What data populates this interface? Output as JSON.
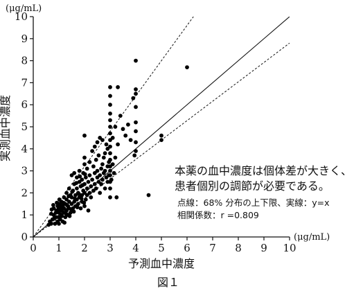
{
  "figure": {
    "caption": "図１"
  },
  "chart_data": {
    "type": "scatter",
    "xlabel": "予測血中濃度",
    "ylabel": "実測血中濃度",
    "x_unit": "(μg/mL)",
    "y_unit": "(μg/mL)",
    "xlim": [
      0,
      10
    ],
    "ylim": [
      0,
      10
    ],
    "x_ticks": [
      0,
      1,
      2,
      3,
      4,
      5,
      6,
      7,
      8,
      9,
      10
    ],
    "y_ticks": [
      0,
      1,
      2,
      3,
      4,
      5,
      6,
      7,
      8,
      9,
      10
    ],
    "grid": false,
    "annotations": {
      "line1": "本薬の血中濃度は個体差が大きく、",
      "line2": "患者個別の調節が必要である。",
      "line3": "点線：68% 分布の上下限、実線：y=x",
      "line4": "相関係数：r =0.809"
    },
    "reference_lines": [
      {
        "name": "y=x",
        "style": "solid",
        "slope": 1.0
      },
      {
        "style": "dotted",
        "slope": 1.6
      },
      {
        "style": "dotted",
        "slope": 0.88
      }
    ],
    "points": [
      [
        0.7,
        0.6
      ],
      [
        0.75,
        0.8
      ],
      [
        0.8,
        1.0
      ],
      [
        0.8,
        1.3
      ],
      [
        0.85,
        0.6
      ],
      [
        0.9,
        0.9
      ],
      [
        0.9,
        1.2
      ],
      [
        0.95,
        1.4
      ],
      [
        0.95,
        0.7
      ],
      [
        1.0,
        0.6
      ],
      [
        1.0,
        0.9
      ],
      [
        1.0,
        1.1
      ],
      [
        1.0,
        1.3
      ],
      [
        1.05,
        1.5
      ],
      [
        1.05,
        0.8
      ],
      [
        1.1,
        1.0
      ],
      [
        1.1,
        1.2
      ],
      [
        1.1,
        1.6
      ],
      [
        1.15,
        0.7
      ],
      [
        1.15,
        1.4
      ],
      [
        1.2,
        1.1
      ],
      [
        1.2,
        1.3
      ],
      [
        1.2,
        1.8
      ],
      [
        1.25,
        0.9
      ],
      [
        1.25,
        1.5
      ],
      [
        1.3,
        1.2
      ],
      [
        1.3,
        1.7
      ],
      [
        1.3,
        2.0
      ],
      [
        1.35,
        1.0
      ],
      [
        1.35,
        1.4
      ],
      [
        1.4,
        1.3
      ],
      [
        1.4,
        1.6
      ],
      [
        1.4,
        2.2
      ],
      [
        1.45,
        1.1
      ],
      [
        1.45,
        1.9
      ],
      [
        1.5,
        1.5
      ],
      [
        1.5,
        1.8
      ],
      [
        1.5,
        2.8
      ],
      [
        1.55,
        1.3
      ],
      [
        1.55,
        2.1
      ],
      [
        1.6,
        1.6
      ],
      [
        1.6,
        2.4
      ],
      [
        1.6,
        2.9
      ],
      [
        1.65,
        1.4
      ],
      [
        1.65,
        1.9
      ],
      [
        1.7,
        1.7
      ],
      [
        1.7,
        2.2
      ],
      [
        1.7,
        2.7
      ],
      [
        1.75,
        1.5
      ],
      [
        1.75,
        2.0
      ],
      [
        1.8,
        1.8
      ],
      [
        1.8,
        2.5
      ],
      [
        1.8,
        3.0
      ],
      [
        1.85,
        1.3
      ],
      [
        1.85,
        2.3
      ],
      [
        1.9,
        1.9
      ],
      [
        1.9,
        2.6
      ],
      [
        1.9,
        1.6
      ],
      [
        1.95,
        2.1
      ],
      [
        1.95,
        2.9
      ],
      [
        2.0,
        1.4
      ],
      [
        2.0,
        2.0
      ],
      [
        2.0,
        2.4
      ],
      [
        2.0,
        3.3
      ],
      [
        2.0,
        3.6
      ],
      [
        2.0,
        4.6
      ],
      [
        2.05,
        1.7
      ],
      [
        2.05,
        2.7
      ],
      [
        2.1,
        1.9
      ],
      [
        2.1,
        2.2
      ],
      [
        2.1,
        3.1
      ],
      [
        2.15,
        2.5
      ],
      [
        2.15,
        1.2
      ],
      [
        2.2,
        2.0
      ],
      [
        2.2,
        2.8
      ],
      [
        2.2,
        3.4
      ],
      [
        2.25,
        2.3
      ],
      [
        2.25,
        1.8
      ],
      [
        2.3,
        2.6
      ],
      [
        2.3,
        3.9
      ],
      [
        2.35,
        2.1
      ],
      [
        2.35,
        3.2
      ],
      [
        2.4,
        2.4
      ],
      [
        2.4,
        2.9
      ],
      [
        2.4,
        4.1
      ],
      [
        2.45,
        2.2
      ],
      [
        2.45,
        3.5
      ],
      [
        2.5,
        2.7
      ],
      [
        2.5,
        3.0
      ],
      [
        2.5,
        4.3
      ],
      [
        2.55,
        2.5
      ],
      [
        2.55,
        3.7
      ],
      [
        2.6,
        2.8
      ],
      [
        2.6,
        2.0
      ],
      [
        2.6,
        4.5
      ],
      [
        2.65,
        3.1
      ],
      [
        2.65,
        2.4
      ],
      [
        2.7,
        3.3
      ],
      [
        2.7,
        2.6
      ],
      [
        2.7,
        4.4
      ],
      [
        2.75,
        2.9
      ],
      [
        2.75,
        3.6
      ],
      [
        2.8,
        2.2
      ],
      [
        2.8,
        3.0
      ],
      [
        2.8,
        3.8
      ],
      [
        2.85,
        2.7
      ],
      [
        2.85,
        4.2
      ],
      [
        2.9,
        3.2
      ],
      [
        2.9,
        2.5
      ],
      [
        2.9,
        4.0
      ],
      [
        2.95,
        2.8
      ],
      [
        2.95,
        3.4
      ],
      [
        3.0,
        1.8
      ],
      [
        3.0,
        2.2
      ],
      [
        3.0,
        2.5
      ],
      [
        3.0,
        2.8
      ],
      [
        3.0,
        3.0
      ],
      [
        3.0,
        3.2
      ],
      [
        3.0,
        3.5
      ],
      [
        3.0,
        3.8
      ],
      [
        3.0,
        4.1
      ],
      [
        3.0,
        4.4
      ],
      [
        3.0,
        4.7
      ],
      [
        3.0,
        5.0
      ],
      [
        3.0,
        5.3
      ],
      [
        3.0,
        5.6
      ],
      [
        3.0,
        6.0
      ],
      [
        3.0,
        6.4
      ],
      [
        3.0,
        6.8
      ],
      [
        3.05,
        2.6
      ],
      [
        3.1,
        3.3
      ],
      [
        3.1,
        4.5
      ],
      [
        3.15,
        2.9
      ],
      [
        3.2,
        3.6
      ],
      [
        3.2,
        5.0
      ],
      [
        3.25,
        1.8
      ],
      [
        3.3,
        4.2
      ],
      [
        3.3,
        6.8
      ],
      [
        3.4,
        5.5
      ],
      [
        3.5,
        4.9
      ],
      [
        3.6,
        4.6
      ],
      [
        3.7,
        5.1
      ],
      [
        3.8,
        4.4
      ],
      [
        3.9,
        6.3
      ],
      [
        3.95,
        3.7
      ],
      [
        4.0,
        3.9
      ],
      [
        4.0,
        4.3
      ],
      [
        4.0,
        4.8
      ],
      [
        4.0,
        5.2
      ],
      [
        4.0,
        5.9
      ],
      [
        4.0,
        6.5
      ],
      [
        4.0,
        6.7
      ],
      [
        4.0,
        8.0
      ],
      [
        4.5,
        1.9
      ],
      [
        5.0,
        4.4
      ],
      [
        5.0,
        4.6
      ],
      [
        6.0,
        7.7
      ],
      [
        0.6,
        0.55
      ],
      [
        0.65,
        0.7
      ],
      [
        0.7,
        1.05
      ],
      [
        0.72,
        1.25
      ],
      [
        0.78,
        1.45
      ],
      [
        0.82,
        0.85
      ],
      [
        0.88,
        1.1
      ],
      [
        0.92,
        1.55
      ],
      [
        0.98,
        1.25
      ],
      [
        1.02,
        1.7
      ],
      [
        1.08,
        1.35
      ],
      [
        1.12,
        0.95
      ],
      [
        1.18,
        1.55
      ],
      [
        1.22,
        0.65
      ],
      [
        1.28,
        1.05
      ],
      [
        1.32,
        1.45
      ],
      [
        1.38,
        1.85
      ],
      [
        1.42,
        0.95
      ],
      [
        1.48,
        1.25
      ],
      [
        1.52,
        2.05
      ],
      [
        1.58,
        1.15
      ],
      [
        1.62,
        1.75
      ],
      [
        1.68,
        2.45
      ],
      [
        1.72,
        1.35
      ],
      [
        1.78,
        1.95
      ],
      [
        1.82,
        2.75
      ],
      [
        1.88,
        1.75
      ],
      [
        1.92,
        2.35
      ],
      [
        1.98,
        1.55
      ],
      [
        2.02,
        2.85
      ]
    ]
  }
}
